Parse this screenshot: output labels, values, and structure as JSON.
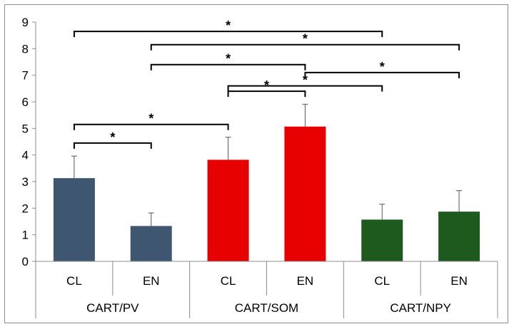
{
  "chart_data": {
    "type": "bar",
    "title": "",
    "xlabel": "",
    "ylabel": "",
    "ylim": [
      0,
      9
    ],
    "yticks": [
      0,
      1,
      2,
      3,
      4,
      5,
      6,
      7,
      8,
      9
    ],
    "legend": "none",
    "grid": false,
    "categories": [
      "CL",
      "EN",
      "CL",
      "EN",
      "CL",
      "EN"
    ],
    "groups": [
      {
        "label": "CART/PV",
        "color": "#3e5670"
      },
      {
        "label": "CART/SOM",
        "color": "#e60000"
      },
      {
        "label": "CART/NPY",
        "color": "#1e5a1e"
      }
    ],
    "bars": [
      {
        "group": 0,
        "label": "CL",
        "value": 3.13,
        "error": 0.83
      },
      {
        "group": 0,
        "label": "EN",
        "value": 1.33,
        "error": 0.49
      },
      {
        "group": 1,
        "label": "CL",
        "value": 3.82,
        "error": 0.85
      },
      {
        "group": 1,
        "label": "EN",
        "value": 5.07,
        "error": 0.84
      },
      {
        "group": 2,
        "label": "CL",
        "value": 1.57,
        "error": 0.58
      },
      {
        "group": 2,
        "label": "EN",
        "value": 1.87,
        "error": 0.79
      }
    ],
    "significance": [
      {
        "from": 0,
        "to": 4,
        "level": 8.65,
        "label": "*"
      },
      {
        "from": 1,
        "to": 5,
        "level": 8.15,
        "label": "*"
      },
      {
        "from": 1,
        "to": 3,
        "level": 7.4,
        "label": "*"
      },
      {
        "from": 3,
        "to": 5,
        "level": 7.1,
        "label": "*"
      },
      {
        "from": 2,
        "to": 4,
        "level": 6.6,
        "label": "*"
      },
      {
        "from": 2,
        "to": 3,
        "level": 6.4,
        "label": "*"
      },
      {
        "from": 0,
        "to": 2,
        "level": 5.15,
        "label": "*"
      },
      {
        "from": 0,
        "to": 1,
        "level": 4.45,
        "label": "*"
      }
    ]
  }
}
